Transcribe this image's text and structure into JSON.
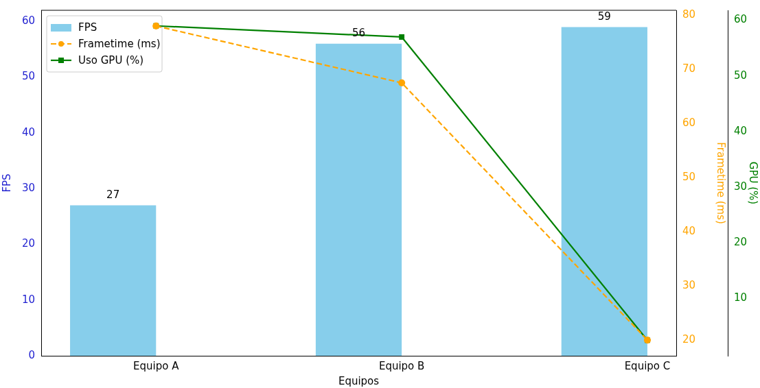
{
  "chart_data": {
    "type": "bar",
    "xlabel": "Equipos",
    "ylabel": "FPS",
    "y2label": "Frametime (ms)",
    "y3label": "GPU (%)",
    "categories": [
      "Equipo A",
      "Equipo B",
      "Equipo C"
    ],
    "series": [
      {
        "name": "FPS",
        "color": "#87ceeb",
        "values": [
          27,
          56,
          59
        ],
        "value_labels": [
          "27",
          "56",
          "59"
        ]
      },
      {
        "name": "Frametime (ms)",
        "type": "line",
        "axis": "y2",
        "color": "#ffa500",
        "values": [
          78,
          67.5,
          20
        ],
        "marker": "circle",
        "line_style": "dashed"
      },
      {
        "name": "Uso GPU (%)",
        "type": "line",
        "axis": "y3",
        "color": "#008000",
        "values": [
          59,
          57,
          2.5
        ],
        "marker": "square",
        "line_style": "solid"
      }
    ],
    "ylim": [
      0,
      62
    ],
    "yticks": [
      0,
      10,
      20,
      30,
      40,
      50,
      60
    ],
    "y2lim": [
      17.1,
      80.9
    ],
    "y2ticks": [
      20,
      30,
      40,
      50,
      60,
      70,
      80
    ],
    "y3lim": [
      -0.3,
      61.8
    ],
    "y3ticks": [
      10,
      20,
      30,
      40,
      50,
      60
    ],
    "legend": "top left",
    "grid": false
  }
}
